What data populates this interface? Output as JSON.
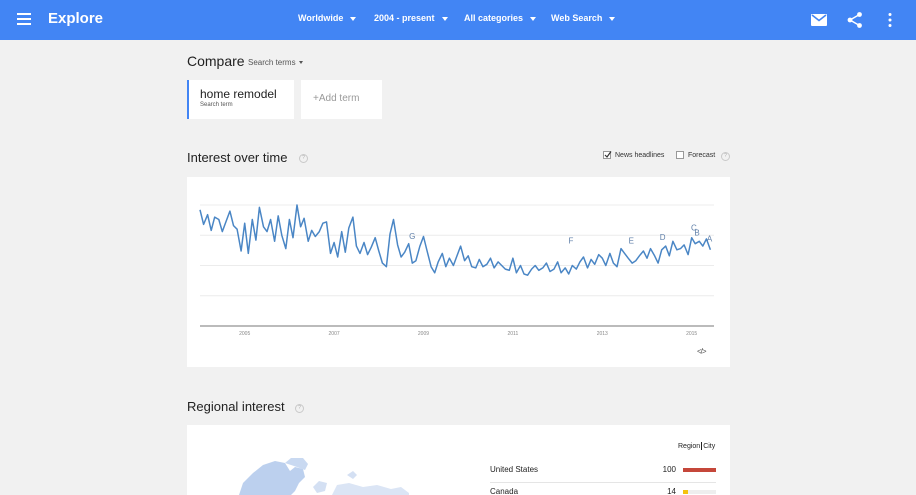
{
  "header": {
    "title": "Explore",
    "filters": [
      {
        "label": "Worldwide"
      },
      {
        "label": "2004 - present"
      },
      {
        "label": "All categories"
      },
      {
        "label": "Web Search"
      }
    ],
    "icons": [
      "menu-icon",
      "mail-icon",
      "share-icon",
      "more-vert-icon"
    ],
    "accent_color": "#4285f4"
  },
  "compare": {
    "title": "Compare",
    "dropdown_label": "Search terms",
    "terms": [
      {
        "name": "home remodel",
        "type": "Search term",
        "color": "#4285f4"
      }
    ],
    "add_term_label": "+Add term"
  },
  "interest": {
    "title": "Interest over time",
    "help": "?",
    "options": [
      {
        "label": "News headlines",
        "checked": true
      },
      {
        "label": "Forecast",
        "checked": false
      }
    ],
    "embed_label": "</>"
  },
  "chart_data": {
    "type": "line",
    "xlabel": "",
    "ylabel": "",
    "ylim": [
      0,
      100
    ],
    "grid": true,
    "x_tick_labels": [
      "2005",
      "2007",
      "2009",
      "2011",
      "2013",
      "2015"
    ],
    "x_tick_positions": [
      2005.0,
      2007.0,
      2009.0,
      2011.0,
      2013.0,
      2015.0
    ],
    "x_range": [
      2004.0,
      2015.5
    ],
    "series": [
      {
        "color": "#4a86c5",
        "x": [
          2004.0,
          2004.08,
          2004.17,
          2004.25,
          2004.33,
          2004.42,
          2004.5,
          2004.58,
          2004.67,
          2004.75,
          2004.83,
          2004.92,
          2005.0,
          2005.08,
          2005.17,
          2005.25,
          2005.33,
          2005.42,
          2005.5,
          2005.58,
          2005.67,
          2005.75,
          2005.83,
          2005.92,
          2006.0,
          2006.08,
          2006.17,
          2006.25,
          2006.33,
          2006.42,
          2006.5,
          2006.58,
          2006.67,
          2006.75,
          2006.83,
          2006.92,
          2007.0,
          2007.08,
          2007.17,
          2007.25,
          2007.33,
          2007.42,
          2007.5,
          2007.58,
          2007.67,
          2007.75,
          2007.83,
          2007.92,
          2008.0,
          2008.08,
          2008.17,
          2008.25,
          2008.33,
          2008.42,
          2008.5,
          2008.58,
          2008.67,
          2008.75,
          2008.83,
          2008.92,
          2009.0,
          2009.08,
          2009.17,
          2009.25,
          2009.33,
          2009.42,
          2009.5,
          2009.58,
          2009.67,
          2009.75,
          2009.83,
          2009.92,
          2010.0,
          2010.08,
          2010.17,
          2010.25,
          2010.33,
          2010.42,
          2010.5,
          2010.58,
          2010.67,
          2010.75,
          2010.83,
          2010.92,
          2011.0,
          2011.08,
          2011.17,
          2011.25,
          2011.33,
          2011.42,
          2011.5,
          2011.58,
          2011.67,
          2011.75,
          2011.83,
          2011.92,
          2012.0,
          2012.08,
          2012.17,
          2012.25,
          2012.33,
          2012.42,
          2012.5,
          2012.58,
          2012.67,
          2012.75,
          2012.83,
          2012.92,
          2013.0,
          2013.08,
          2013.17,
          2013.25,
          2013.33,
          2013.42,
          2013.5,
          2013.58,
          2013.67,
          2013.75,
          2013.83,
          2013.92,
          2014.0,
          2014.08,
          2014.17,
          2014.25,
          2014.33,
          2014.42,
          2014.5,
          2014.58,
          2014.67,
          2014.75,
          2014.83,
          2014.92,
          2015.0,
          2015.08,
          2015.17,
          2015.25,
          2015.33,
          2015.42
        ],
        "values": [
          96,
          84,
          92,
          79,
          90,
          88,
          78,
          86,
          95,
          83,
          80,
          62,
          85,
          60,
          88,
          71,
          98,
          82,
          78,
          88,
          70,
          91,
          75,
          64,
          88,
          73,
          100,
          82,
          89,
          70,
          79,
          74,
          78,
          85,
          86,
          60,
          69,
          57,
          78,
          61,
          81,
          90,
          66,
          60,
          69,
          59,
          65,
          73,
          62,
          52,
          49,
          76,
          88,
          67,
          57,
          61,
          68,
          52,
          54,
          66,
          74,
          62,
          49,
          44,
          53,
          60,
          49,
          56,
          50,
          58,
          66,
          54,
          58,
          49,
          48,
          55,
          49,
          51,
          56,
          48,
          53,
          50,
          47,
          46,
          56,
          44,
          50,
          43,
          42,
          47,
          50,
          46,
          48,
          52,
          45,
          47,
          53,
          44,
          48,
          43,
          50,
          47,
          53,
          57,
          48,
          55,
          51,
          59,
          56,
          50,
          60,
          52,
          49,
          64,
          60,
          56,
          52,
          54,
          58,
          62,
          56,
          64,
          58,
          52,
          63,
          66,
          58,
          70,
          63,
          64,
          67,
          59,
          73,
          68,
          70,
          66,
          72,
          63
        ]
      }
    ],
    "annotations": [
      {
        "label": "G",
        "x": 2008.75,
        "y": 72
      },
      {
        "label": "F",
        "x": 2012.3,
        "y": 68
      },
      {
        "label": "E",
        "x": 2013.65,
        "y": 68
      },
      {
        "label": "D",
        "x": 2014.35,
        "y": 71
      },
      {
        "label": "C",
        "x": 2015.05,
        "y": 79
      },
      {
        "label": "B",
        "x": 2015.12,
        "y": 75
      },
      {
        "label": "A",
        "x": 2015.4,
        "y": 70
      }
    ]
  },
  "regional": {
    "title": "Regional interest",
    "help": "?",
    "toggle": {
      "region": "Region",
      "city": "City"
    },
    "rows": [
      {
        "name": "United States",
        "value": "100",
        "fraction": 1.0,
        "color": "#c5473a"
      },
      {
        "name": "Canada",
        "value": "14",
        "fraction": 0.14,
        "color": "#f4c20d"
      }
    ],
    "map_color": "#bcd0ee"
  }
}
